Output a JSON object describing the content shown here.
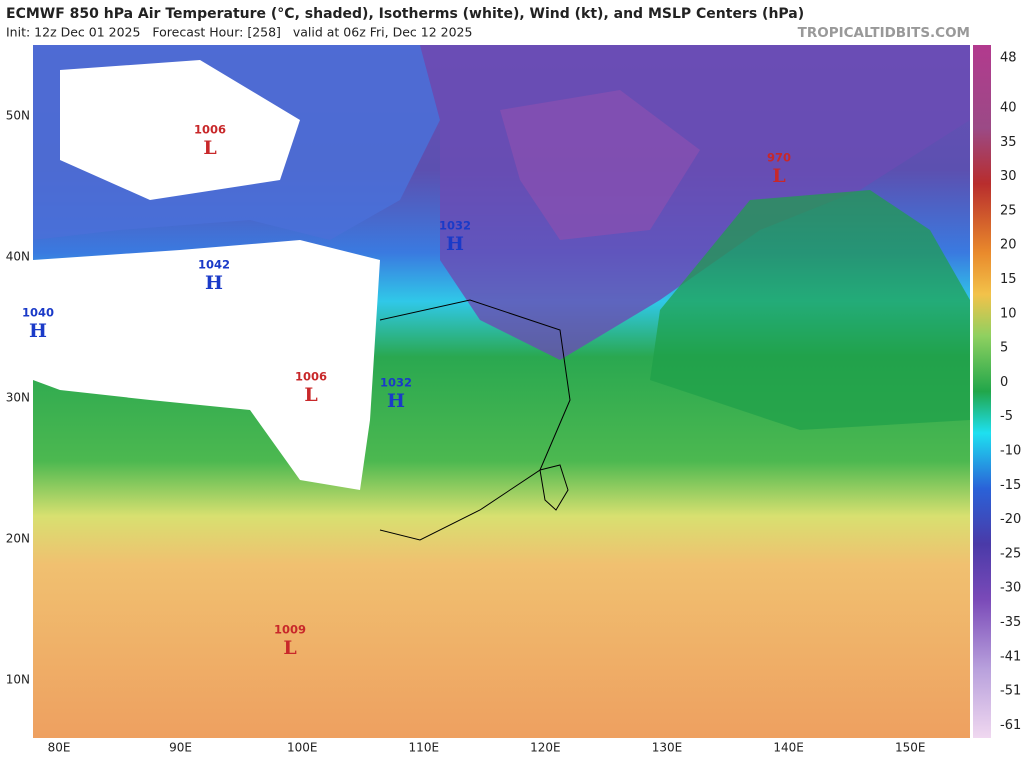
{
  "header": {
    "title": "ECMWF 850 hPa Air Temperature (°C, shaded), Isotherms (white), Wind (kt), and MSLP Centers (hPa)",
    "subtitle": "Init: 12z Dec 01 2025   Forecast Hour: [258]   valid at 06z Fri, Dec 12 2025",
    "watermark": "TROPICALTIDBITS.COM"
  },
  "map": {
    "lat_labels": [
      "50N",
      "40N",
      "30N",
      "20N",
      "10N"
    ],
    "lon_labels": [
      "80E",
      "90E",
      "100E",
      "110E",
      "120E",
      "130E",
      "140E",
      "150E"
    ],
    "pressure_centers": [
      {
        "pressure": 1006,
        "letter": "L"
      },
      {
        "pressure": 970,
        "letter": "L"
      },
      {
        "pressure": 1032,
        "letter": "H"
      },
      {
        "pressure": 1042,
        "letter": "H"
      },
      {
        "pressure": 1040,
        "letter": "H"
      },
      {
        "pressure": 1006,
        "letter": "L"
      },
      {
        "pressure": 1032,
        "letter": "H"
      },
      {
        "pressure": 1009,
        "letter": "L"
      }
    ]
  },
  "colorbar": {
    "ticks": [
      48,
      40,
      35,
      30,
      25,
      20,
      15,
      10,
      5,
      0,
      -5,
      -10,
      -15,
      -20,
      -25,
      -30,
      -35,
      -41,
      -51,
      -61
    ]
  }
}
